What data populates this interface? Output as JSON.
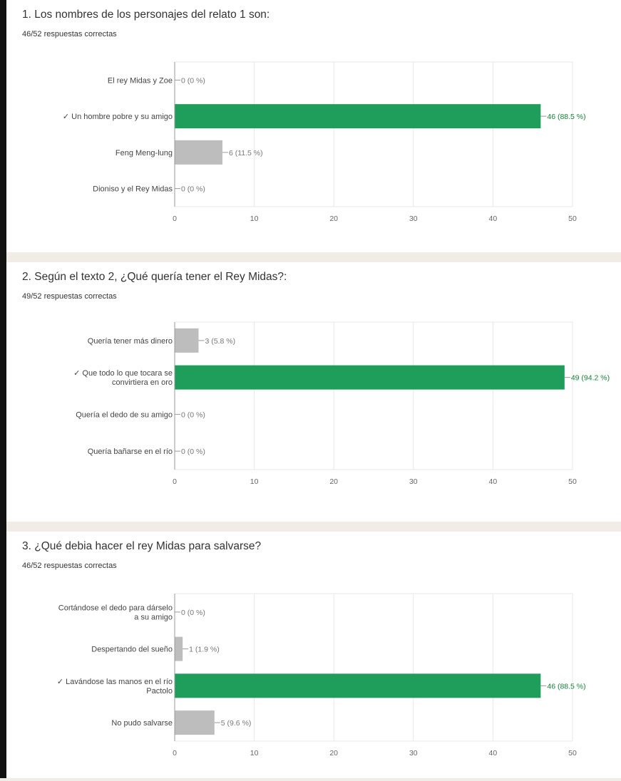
{
  "colors": {
    "correct": "#1e9e5a",
    "incorrect": "#bdbdbd",
    "grid": "#e8e8e8",
    "axis": "#999999",
    "background": "#f1ece6"
  },
  "questions": [
    {
      "title": "1. Los nombres de los personajes del relato 1 son:",
      "score": "46/52 respuestas correctas",
      "chart_data": {
        "type": "bar",
        "orientation": "horizontal",
        "categories": [
          {
            "label": [
              "El rey Midas y Zoe"
            ],
            "correct": false
          },
          {
            "label": [
              "✓ Un hombre pobre y su amigo"
            ],
            "correct": true
          },
          {
            "label": [
              "Feng Meng-lung"
            ],
            "correct": false
          },
          {
            "label": [
              "Dioniso y el Rey Midas"
            ],
            "correct": false
          }
        ],
        "values": [
          0,
          46,
          6,
          0
        ],
        "value_labels": [
          "0 (0 %)",
          "46 (88.5 %)",
          "6 (11.5 %)",
          "0 (0 %)"
        ],
        "xlim": [
          0,
          50
        ],
        "ticks": [
          "0",
          "10",
          "20",
          "30",
          "40",
          "50"
        ],
        "grid": true
      }
    },
    {
      "title": "2. Según el texto 2, ¿Qué quería tener el Rey Midas?:",
      "score": "49/52 respuestas correctas",
      "chart_data": {
        "type": "bar",
        "orientation": "horizontal",
        "categories": [
          {
            "label": [
              "Quería tener más dinero"
            ],
            "correct": false
          },
          {
            "label": [
              "✓ Que todo lo que tocara se",
              "convirtiera en oro"
            ],
            "correct": true
          },
          {
            "label": [
              "Quería el dedo de su amigo"
            ],
            "correct": false
          },
          {
            "label": [
              "Quería bañarse en el río"
            ],
            "correct": false
          }
        ],
        "values": [
          3,
          49,
          0,
          0
        ],
        "value_labels": [
          "3 (5.8 %)",
          "49 (94.2 %)",
          "0 (0 %)",
          "0 (0 %)"
        ],
        "xlim": [
          0,
          50
        ],
        "ticks": [
          "0",
          "10",
          "20",
          "30",
          "40",
          "50"
        ],
        "grid": true
      }
    },
    {
      "title": "3. ¿Qué debia hacer el rey Midas para salvarse?",
      "score": "46/52 respuestas correctas",
      "chart_data": {
        "type": "bar",
        "orientation": "horizontal",
        "categories": [
          {
            "label": [
              "Cortándose el dedo para dárselo",
              "a su amigo"
            ],
            "correct": false
          },
          {
            "label": [
              "Despertando del sueño"
            ],
            "correct": false
          },
          {
            "label": [
              "✓ Lavándose las manos en el río",
              "Pactolo"
            ],
            "correct": true
          },
          {
            "label": [
              "No pudo salvarse"
            ],
            "correct": false
          }
        ],
        "values": [
          0,
          1,
          46,
          5
        ],
        "value_labels": [
          "0 (0 %)",
          "1 (1.9 %)",
          "46 (88.5 %)",
          "5 (9.6 %)"
        ],
        "xlim": [
          0,
          50
        ],
        "ticks": [
          "0",
          "10",
          "20",
          "30",
          "40",
          "50"
        ],
        "grid": true
      }
    }
  ]
}
